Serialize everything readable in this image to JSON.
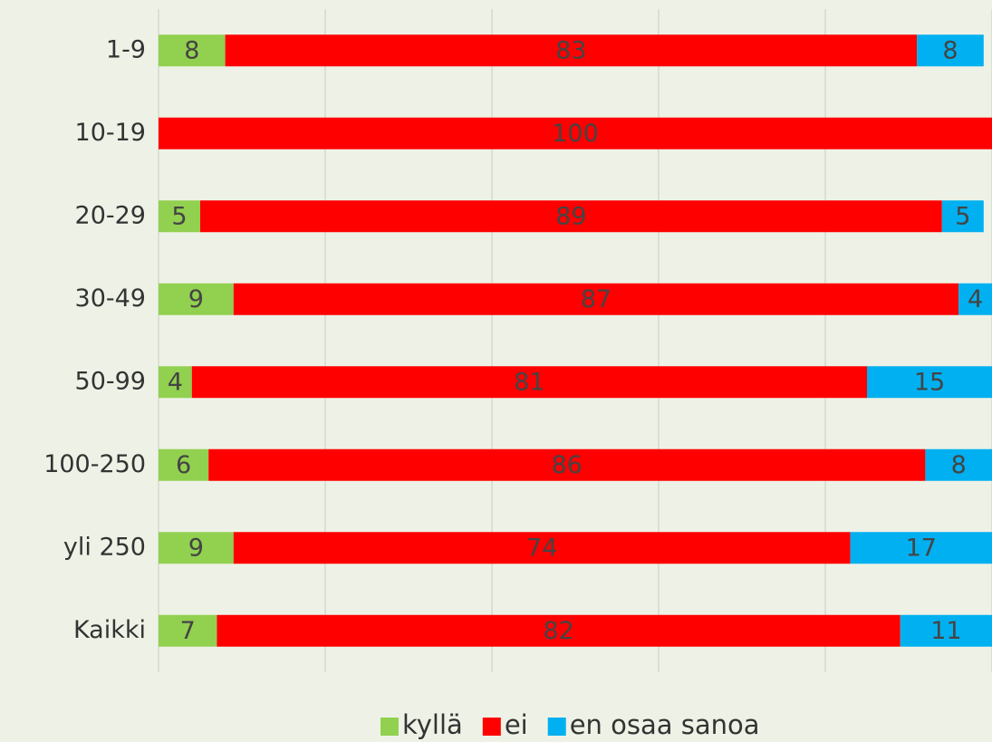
{
  "chart_data": {
    "type": "stacked-bar-horizontal",
    "categories": [
      "1-9",
      "10-19",
      "20-29",
      "30-49",
      "50-99",
      "100-250",
      "yli 250",
      "Kaikki"
    ],
    "series": [
      {
        "name": "kyllä",
        "color": "#92d050",
        "values": [
          8,
          null,
          5,
          9,
          4,
          6,
          9,
          7
        ]
      },
      {
        "name": "ei",
        "color": "#ff0000",
        "values": [
          83,
          100,
          89,
          87,
          81,
          86,
          74,
          82
        ]
      },
      {
        "name": "en osaa sanoa",
        "color": "#00b0f0",
        "values": [
          8,
          null,
          5,
          4,
          15,
          8,
          17,
          11
        ]
      }
    ],
    "xlim": [
      0,
      100
    ],
    "xticks": [
      0,
      20,
      40,
      60,
      80,
      100
    ],
    "grid": true,
    "legend": "bottom"
  }
}
